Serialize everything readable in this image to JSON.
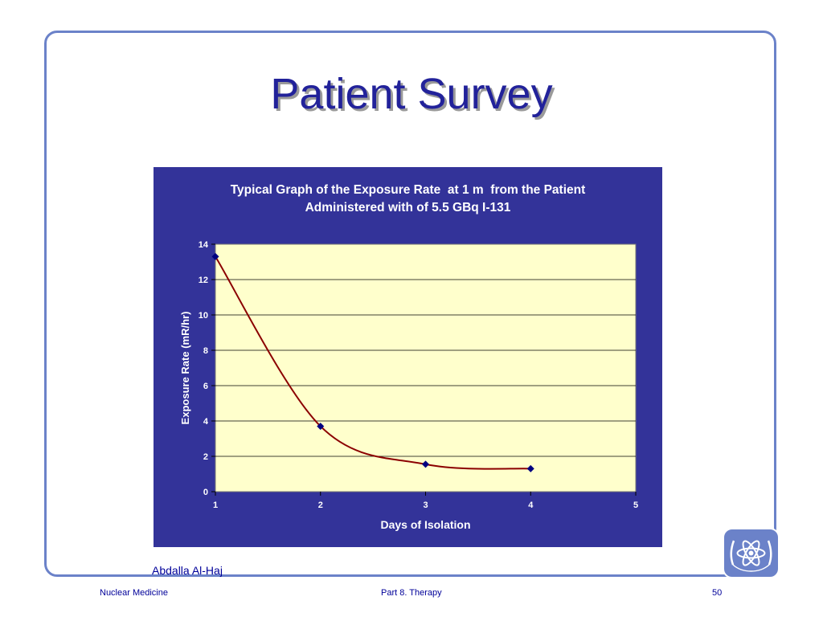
{
  "slide": {
    "title": "Patient Survey",
    "author": "Abdalla Al-Haj",
    "footer_left": "Nuclear Medicine",
    "footer_center": "Part 8. Therapy",
    "page_number": "50"
  },
  "logo": {
    "icon": "iaea-atom-emblem-icon"
  },
  "colors": {
    "chart_background": "#333399",
    "plot_area": "#ffffcc",
    "line": "#8b0000",
    "marker": "#000080",
    "frame": "#6b82c9",
    "title_text": "#22229a"
  },
  "chart_data": {
    "type": "line",
    "title_lines": [
      "Typical Graph of the Exposure Rate  at 1 m  from the Patient",
      "Administered with of 5.5 GBq I-131"
    ],
    "xlabel": "Days of Isolation",
    "ylabel": "Exposure Rate (mR/hr)",
    "x": [
      1,
      2,
      3,
      4
    ],
    "series": [
      {
        "values": [
          13.3,
          3.7,
          1.55,
          1.3
        ]
      }
    ],
    "xlim": [
      1,
      5
    ],
    "ylim": [
      0,
      14
    ],
    "x_ticks": [
      "1",
      "2",
      "3",
      "4",
      "5"
    ],
    "y_ticks": [
      "0",
      "2",
      "4",
      "6",
      "8",
      "10",
      "12",
      "14"
    ],
    "grid": "horizontal",
    "smoothed": true,
    "legend": "none"
  }
}
